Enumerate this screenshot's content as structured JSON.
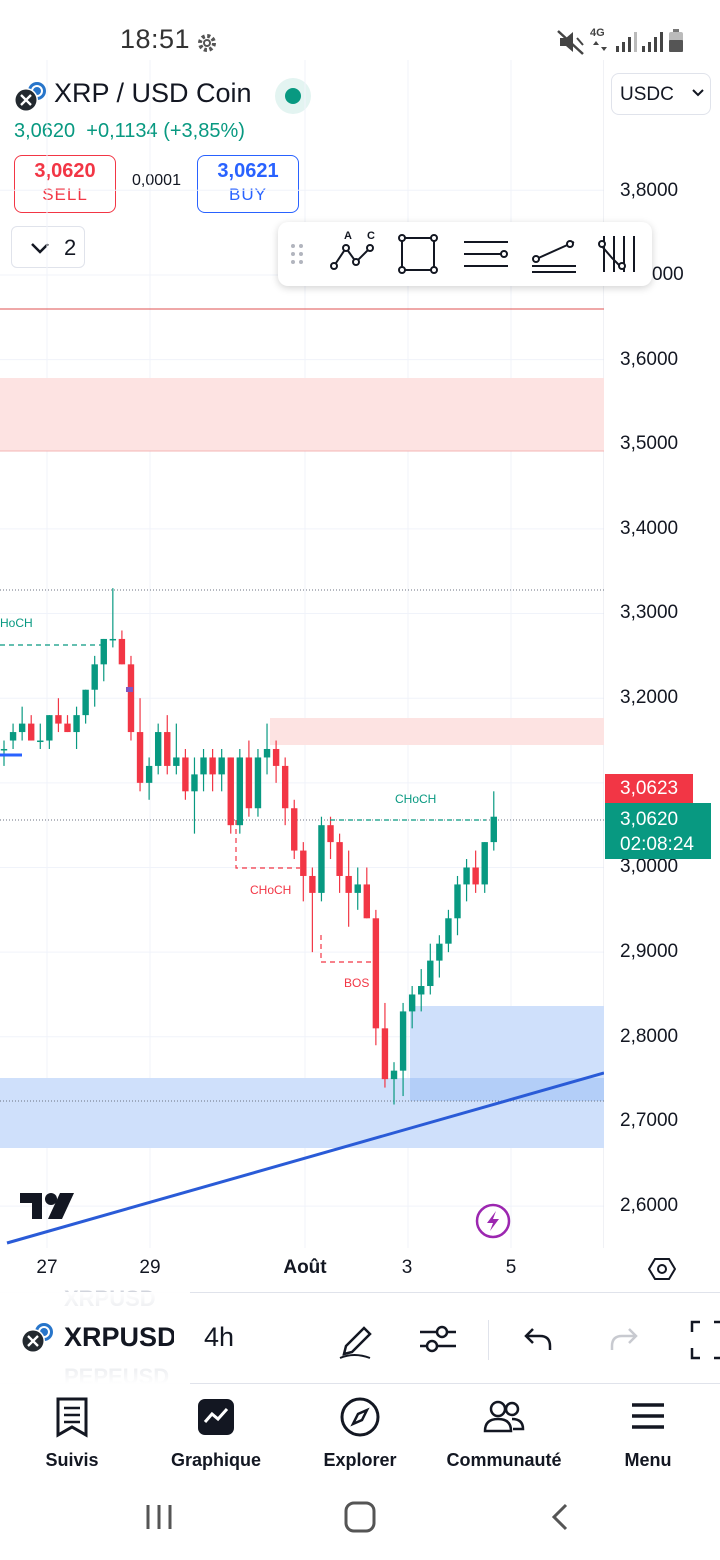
{
  "status_bar": {
    "time": "18:51",
    "network": "4G"
  },
  "header": {
    "symbol": "XRP / USD Coin",
    "last_price": "3,0620",
    "change": "+0,1134 (+3,85%)",
    "currency": "USDC",
    "sell": {
      "price": "3,0620",
      "label": "SELL"
    },
    "buy": {
      "price": "3,0621",
      "label": "BUY"
    },
    "spread": "0,0001",
    "layers_count": "2"
  },
  "drawing_toolbar": {
    "items": [
      "drag-handle-icon",
      "abc-pattern-icon",
      "rectangle-icon",
      "parallel-lines-icon",
      "trend-line-icon",
      "fib-icon"
    ],
    "pattern_letters": [
      "A",
      "C"
    ]
  },
  "chart": {
    "y_ticks": [
      "3,8000",
      "3,7000",
      "3,6000",
      "3,5000",
      "3,4000",
      "3,3000",
      "3,2000",
      "3,0000",
      "2,9000",
      "2,8000",
      "2,7000",
      "2,6000"
    ],
    "x_ticks": [
      "27",
      "29",
      "Août",
      "3",
      "5"
    ],
    "annotations": {
      "choch_left": "HoCH",
      "choch_mid": "CHoCH",
      "choch_right": "CHoCH",
      "bos": "BOS"
    },
    "price_tag_red": "3,0623",
    "price_tag_green": "3,0620",
    "countdown": "02:08:24",
    "colors": {
      "up": "#089981",
      "down": "#f23645",
      "zone_red": "#fde3e2",
      "zone_blue": "#cfe0fb",
      "trendline": "#2a5bd7"
    }
  },
  "chart_data": {
    "type": "candlestick",
    "ylim": [
      2.56,
      3.83
    ],
    "candles": [
      [
        3.14,
        3.15,
        3.12,
        3.14
      ],
      [
        3.15,
        3.17,
        3.14,
        3.16
      ],
      [
        3.16,
        3.19,
        3.15,
        3.17
      ],
      [
        3.17,
        3.18,
        3.15,
        3.15
      ],
      [
        3.15,
        3.17,
        3.14,
        3.15
      ],
      [
        3.15,
        3.18,
        3.14,
        3.18
      ],
      [
        3.18,
        3.2,
        3.16,
        3.17
      ],
      [
        3.17,
        3.18,
        3.16,
        3.16
      ],
      [
        3.16,
        3.19,
        3.14,
        3.18
      ],
      [
        3.18,
        3.21,
        3.17,
        3.21
      ],
      [
        3.21,
        3.25,
        3.19,
        3.24
      ],
      [
        3.24,
        3.27,
        3.22,
        3.27
      ],
      [
        3.27,
        3.33,
        3.26,
        3.27
      ],
      [
        3.27,
        3.28,
        3.24,
        3.24
      ],
      [
        3.24,
        3.25,
        3.15,
        3.16
      ],
      [
        3.16,
        3.2,
        3.09,
        3.1
      ],
      [
        3.1,
        3.13,
        3.08,
        3.12
      ],
      [
        3.12,
        3.17,
        3.11,
        3.16
      ],
      [
        3.16,
        3.18,
        3.11,
        3.12
      ],
      [
        3.12,
        3.17,
        3.11,
        3.13
      ],
      [
        3.13,
        3.14,
        3.08,
        3.09
      ],
      [
        3.09,
        3.13,
        3.04,
        3.11
      ],
      [
        3.11,
        3.14,
        3.09,
        3.13
      ],
      [
        3.13,
        3.14,
        3.09,
        3.11
      ],
      [
        3.11,
        3.14,
        3.09,
        3.13
      ],
      [
        3.13,
        3.13,
        3.04,
        3.05
      ],
      [
        3.05,
        3.14,
        3.04,
        3.13
      ],
      [
        3.13,
        3.15,
        3.06,
        3.07
      ],
      [
        3.07,
        3.14,
        3.06,
        3.13
      ],
      [
        3.13,
        3.17,
        3.11,
        3.14
      ],
      [
        3.14,
        3.15,
        3.1,
        3.12
      ],
      [
        3.12,
        3.13,
        3.05,
        3.07
      ],
      [
        3.07,
        3.08,
        3.01,
        3.02
      ],
      [
        3.02,
        3.03,
        2.96,
        2.99
      ],
      [
        2.99,
        3.0,
        2.9,
        2.97
      ],
      [
        2.97,
        3.06,
        2.96,
        3.05
      ],
      [
        3.05,
        3.06,
        3.01,
        3.03
      ],
      [
        3.03,
        3.04,
        2.97,
        2.99
      ],
      [
        2.99,
        3.02,
        2.93,
        2.97
      ],
      [
        2.97,
        3.0,
        2.95,
        2.98
      ],
      [
        2.98,
        3.0,
        2.94,
        2.94
      ],
      [
        2.94,
        2.95,
        2.79,
        2.81
      ],
      [
        2.81,
        2.84,
        2.74,
        2.75
      ],
      [
        2.75,
        2.77,
        2.72,
        2.76
      ],
      [
        2.76,
        2.84,
        2.73,
        2.83
      ],
      [
        2.83,
        2.86,
        2.81,
        2.85
      ],
      [
        2.85,
        2.88,
        2.83,
        2.86
      ],
      [
        2.86,
        2.91,
        2.85,
        2.89
      ],
      [
        2.89,
        2.92,
        2.87,
        2.91
      ],
      [
        2.91,
        2.95,
        2.9,
        2.94
      ],
      [
        2.94,
        2.99,
        2.92,
        2.98
      ],
      [
        2.98,
        3.01,
        2.96,
        3.0
      ],
      [
        3.0,
        3.02,
        2.97,
        2.98
      ],
      [
        2.98,
        3.03,
        2.97,
        3.03
      ],
      [
        3.03,
        3.09,
        3.02,
        3.06
      ]
    ]
  },
  "bottom_toolbar": {
    "symbol": "XRPUSD",
    "symbol_above": "XRPUSD",
    "symbol_below": "PEPEUSD",
    "timeframe": "4h"
  },
  "bottom_nav": [
    {
      "label": "Suivis",
      "icon": "watchlist-icon"
    },
    {
      "label": "Graphique",
      "icon": "chart-icon"
    },
    {
      "label": "Explorer",
      "icon": "compass-icon"
    },
    {
      "label": "Communauté",
      "icon": "community-icon"
    },
    {
      "label": "Menu",
      "icon": "menu-icon"
    }
  ]
}
